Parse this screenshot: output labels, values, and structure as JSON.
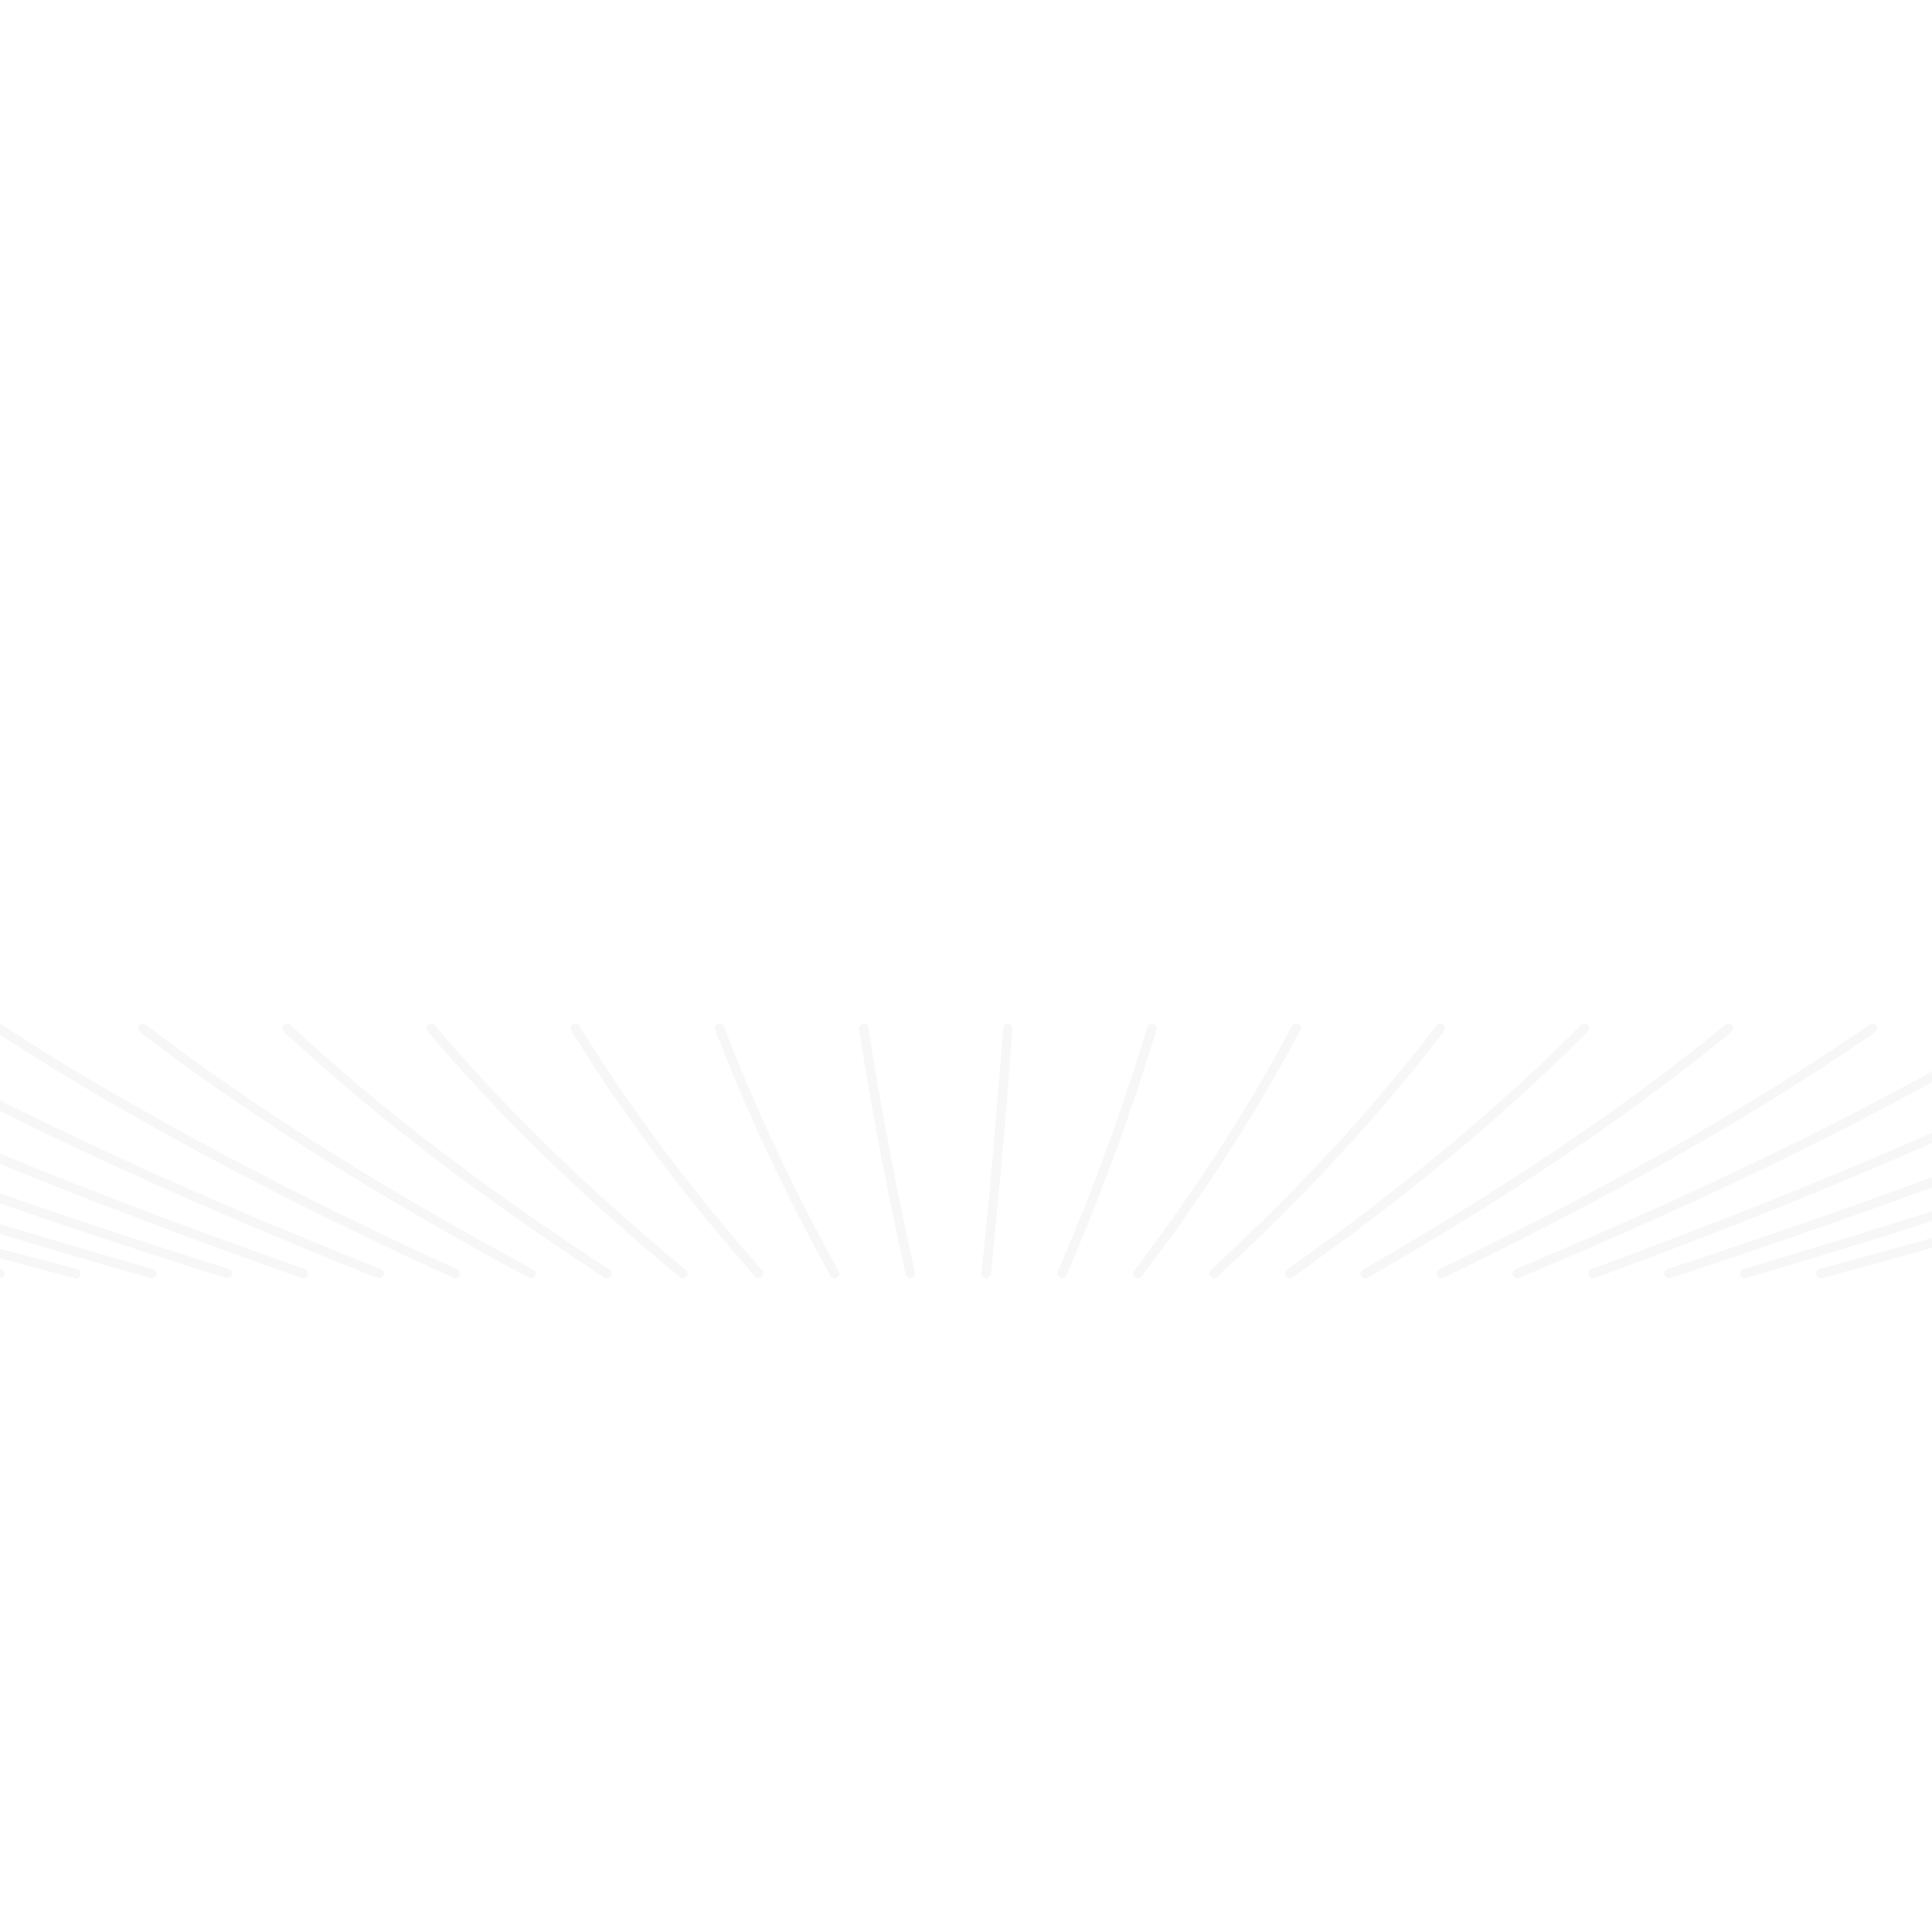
{
  "background_color": "#ffffff",
  "pattern_color": "#f4f4f4",
  "pattern": "faint-radiating-wave-lines"
}
